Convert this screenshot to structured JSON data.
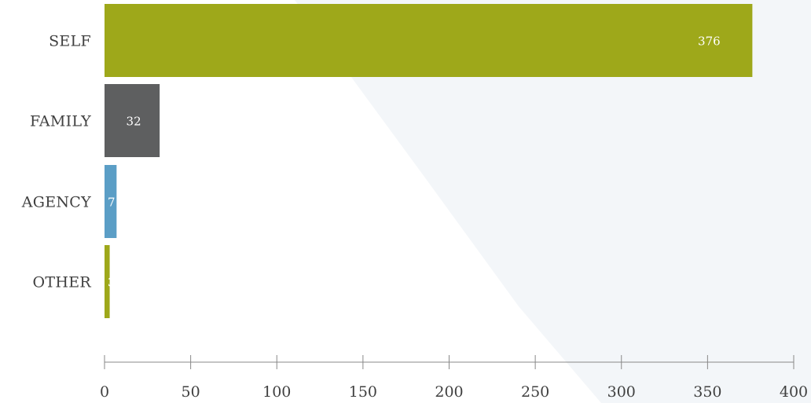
{
  "chart_data": {
    "type": "bar",
    "orientation": "horizontal",
    "categories": [
      "SELF",
      "FAMILY",
      "AGENCY",
      "OTHER"
    ],
    "values": [
      376,
      32,
      7,
      3
    ],
    "bar_colors": [
      "#9ea81a",
      "#5e5f60",
      "#5b9ec6",
      "#9ea81a"
    ],
    "xlim": [
      0,
      400
    ],
    "xticks": [
      0,
      50,
      100,
      150,
      200,
      250,
      300,
      350,
      400
    ],
    "grid": false,
    "background_accent": "#f3f6f9",
    "text_color": "#3f3f3f",
    "axis_color": "#888888"
  }
}
